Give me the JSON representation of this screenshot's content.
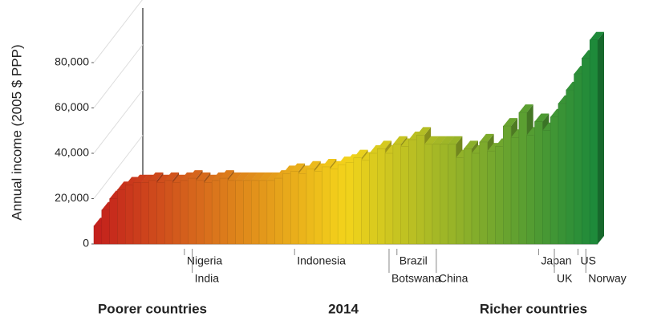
{
  "chart_data": {
    "type": "bar",
    "title": "2014",
    "y_label": "Annual income (2005 $ PPP)",
    "x_left_label": "Poorer countries",
    "x_right_label": "Richer countries",
    "categories": [
      null,
      null,
      null,
      null,
      null,
      null,
      null,
      null,
      null,
      null,
      null,
      "Nigeria",
      "India",
      null,
      null,
      null,
      null,
      null,
      null,
      null,
      null,
      null,
      null,
      null,
      null,
      "Indonesia",
      null,
      null,
      null,
      null,
      null,
      null,
      null,
      null,
      null,
      null,
      null,
      "Botswana",
      "Brazil",
      null,
      null,
      null,
      null,
      "China",
      null,
      null,
      null,
      null,
      null,
      null,
      null,
      null,
      null,
      null,
      null,
      null,
      "Japan",
      null,
      "UK",
      null,
      null,
      "US",
      "Norway",
      null
    ],
    "values": [
      8000,
      15000,
      20000,
      24000,
      26000,
      27000,
      27000,
      28000,
      27000,
      28000,
      27000,
      28000,
      29000,
      28000,
      27000,
      28000,
      29000,
      28000,
      28000,
      28000,
      28000,
      28000,
      28000,
      29000,
      31000,
      32000,
      31000,
      33000,
      32000,
      34000,
      33000,
      35000,
      36000,
      38000,
      37000,
      40000,
      42000,
      40000,
      44000,
      43000,
      46000,
      48000,
      44000,
      44000,
      44000,
      44000,
      38000,
      42000,
      40000,
      45000,
      41000,
      43000,
      52000,
      47000,
      58000,
      48000,
      54000,
      50000,
      56000,
      62000,
      68000,
      75000,
      82000,
      90000
    ],
    "color_scale": [
      "#c4211c",
      "#f3d31b",
      "#1e8a3a"
    ],
    "ylim": [
      0,
      90000
    ],
    "yticks": [
      {
        "value": 0,
        "label": "0"
      },
      {
        "value": 20000,
        "label": "20,000"
      },
      {
        "value": 40000,
        "label": "40,000"
      },
      {
        "value": 60000,
        "label": "60,000"
      },
      {
        "value": 80000,
        "label": "80,000"
      }
    ]
  }
}
